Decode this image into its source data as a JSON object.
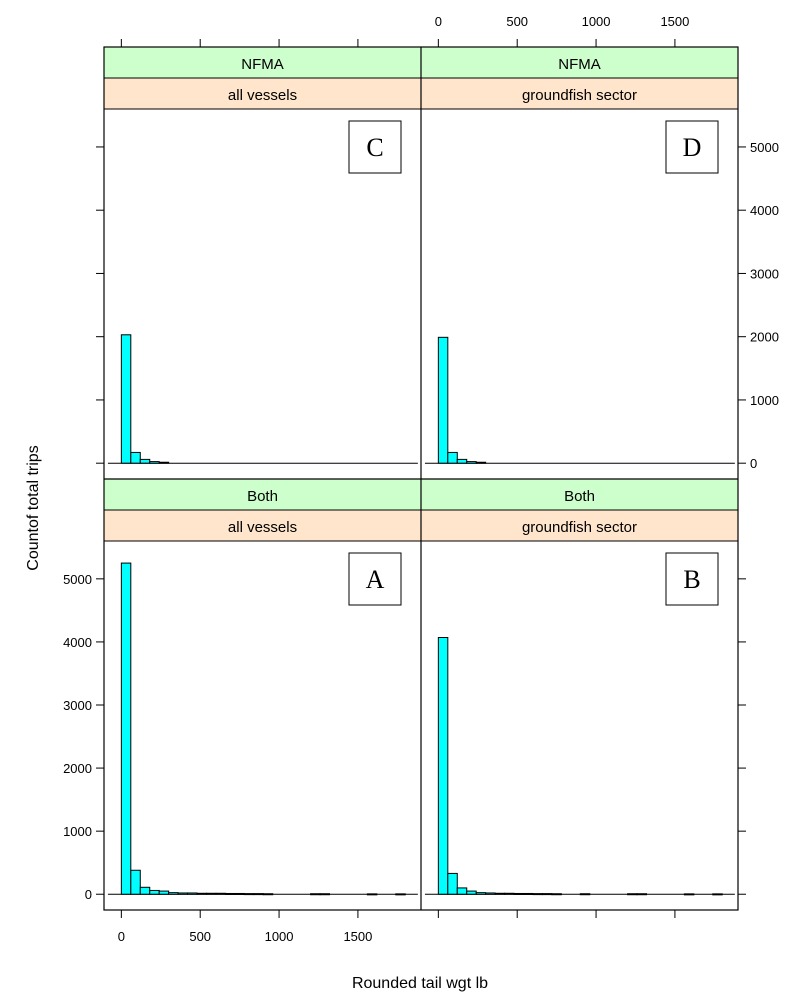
{
  "chart_data": {
    "type": "bar",
    "xlabel": "Rounded tail wgt lb",
    "ylabel": "Countof total trips",
    "xlim": [
      -110,
      1900
    ],
    "ylim": [
      -250,
      5600
    ],
    "x_ticks": [
      "0",
      "500",
      "1000",
      "1500"
    ],
    "y_ticks": [
      "0",
      "1000",
      "2000",
      "3000",
      "4000",
      "5000"
    ],
    "bin_width": 60,
    "strip_colors": {
      "top": "#ccffcc",
      "bottom": "#ffe5cc"
    },
    "bar_color": "#00ffff",
    "panels": [
      {
        "letter": "A",
        "strip_top": "Both",
        "strip_bottom": "all vessels",
        "bins": [
          {
            "x": 0,
            "count": 5250
          },
          {
            "x": 60,
            "count": 380
          },
          {
            "x": 120,
            "count": 110
          },
          {
            "x": 180,
            "count": 60
          },
          {
            "x": 240,
            "count": 50
          },
          {
            "x": 300,
            "count": 25
          },
          {
            "x": 360,
            "count": 20
          },
          {
            "x": 420,
            "count": 20
          },
          {
            "x": 480,
            "count": 15
          },
          {
            "x": 540,
            "count": 15
          },
          {
            "x": 600,
            "count": 15
          },
          {
            "x": 660,
            "count": 12
          },
          {
            "x": 720,
            "count": 12
          },
          {
            "x": 780,
            "count": 10
          },
          {
            "x": 840,
            "count": 10
          },
          {
            "x": 900,
            "count": 8
          },
          {
            "x": 1200,
            "count": 8
          },
          {
            "x": 1260,
            "count": 8
          },
          {
            "x": 1560,
            "count": 6
          },
          {
            "x": 1740,
            "count": 6
          }
        ]
      },
      {
        "letter": "B",
        "strip_top": "Both",
        "strip_bottom": "groundfish sector",
        "bins": [
          {
            "x": 0,
            "count": 4070
          },
          {
            "x": 60,
            "count": 330
          },
          {
            "x": 120,
            "count": 100
          },
          {
            "x": 180,
            "count": 50
          },
          {
            "x": 240,
            "count": 25
          },
          {
            "x": 300,
            "count": 20
          },
          {
            "x": 360,
            "count": 15
          },
          {
            "x": 420,
            "count": 15
          },
          {
            "x": 480,
            "count": 12
          },
          {
            "x": 540,
            "count": 12
          },
          {
            "x": 600,
            "count": 10
          },
          {
            "x": 660,
            "count": 10
          },
          {
            "x": 720,
            "count": 8
          },
          {
            "x": 900,
            "count": 8
          },
          {
            "x": 1200,
            "count": 8
          },
          {
            "x": 1260,
            "count": 8
          },
          {
            "x": 1560,
            "count": 6
          },
          {
            "x": 1740,
            "count": 6
          }
        ]
      },
      {
        "letter": "C",
        "strip_top": "NFMA",
        "strip_bottom": "all vessels",
        "bins": [
          {
            "x": 0,
            "count": 2030
          },
          {
            "x": 60,
            "count": 170
          },
          {
            "x": 120,
            "count": 60
          },
          {
            "x": 180,
            "count": 25
          },
          {
            "x": 240,
            "count": 15
          }
        ]
      },
      {
        "letter": "D",
        "strip_top": "NFMA",
        "strip_bottom": "groundfish sector",
        "bins": [
          {
            "x": 0,
            "count": 1990
          },
          {
            "x": 60,
            "count": 170
          },
          {
            "x": 120,
            "count": 60
          },
          {
            "x": 180,
            "count": 25
          },
          {
            "x": 240,
            "count": 15
          }
        ]
      }
    ]
  }
}
